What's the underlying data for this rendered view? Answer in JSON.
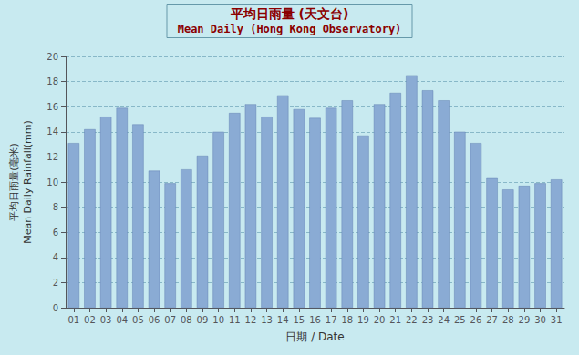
{
  "chart_data": {
    "type": "bar",
    "title": "平均日雨量 (天文台)",
    "subtitle": "Mean Daily (Hong Kong Observatory)",
    "xlabel": "日期 / Date",
    "ylabel": "平均日雨量(毫米)\nMean Daily Rainfall(mm)",
    "categories": [
      "01",
      "02",
      "03",
      "04",
      "05",
      "06",
      "07",
      "08",
      "09",
      "10",
      "11",
      "12",
      "13",
      "14",
      "15",
      "16",
      "17",
      "18",
      "19",
      "20",
      "21",
      "22",
      "23",
      "24",
      "25",
      "26",
      "27",
      "28",
      "29",
      "30",
      "31"
    ],
    "values": [
      13.1,
      14.2,
      15.2,
      15.9,
      14.6,
      10.9,
      9.9,
      11.0,
      12.1,
      14.0,
      15.5,
      16.2,
      15.2,
      16.9,
      15.8,
      15.1,
      15.9,
      16.5,
      13.7,
      16.2,
      17.1,
      18.5,
      17.3,
      16.5,
      14.0,
      13.1,
      10.3,
      9.4,
      9.7,
      9.9,
      10.2
    ],
    "color": "#8AABD4",
    "ylim": [
      0,
      20
    ],
    "yticks": [
      0,
      2,
      4,
      6,
      8,
      10,
      12,
      14,
      16,
      18,
      20
    ],
    "grid": true
  }
}
